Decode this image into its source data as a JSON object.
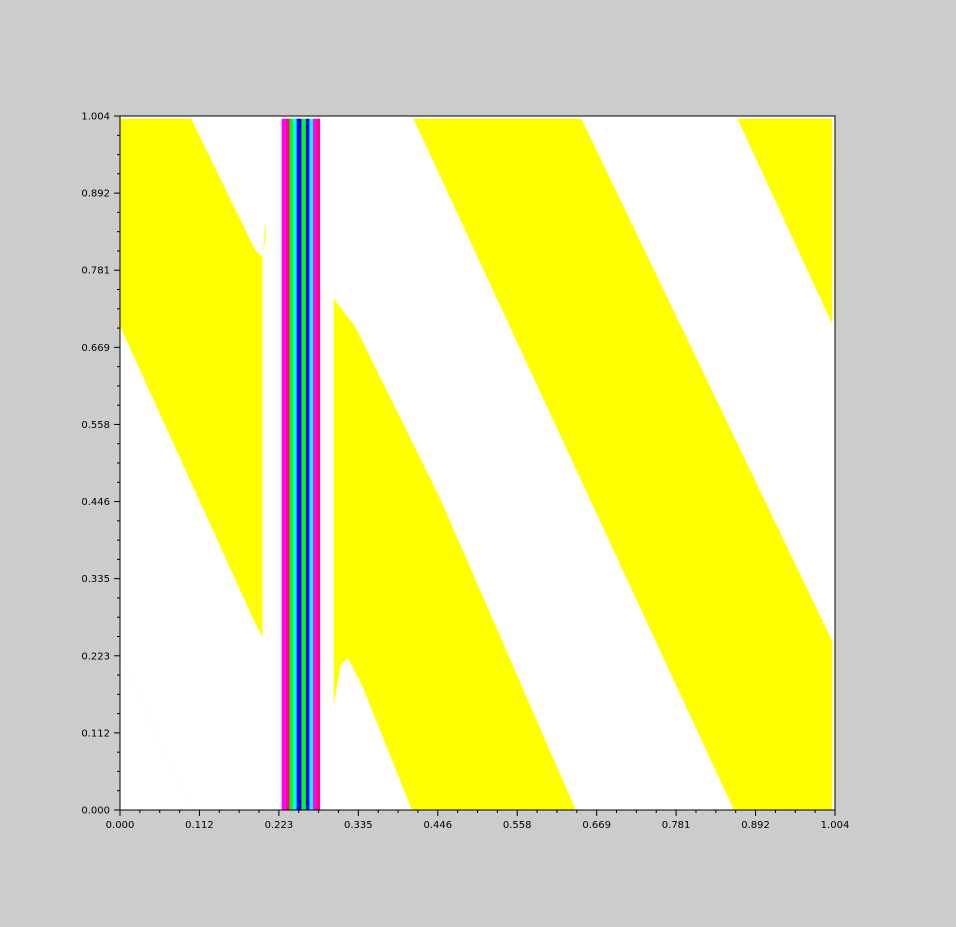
{
  "colors": {
    "figure_background": "#cccccc",
    "plot_background": "#ffffff",
    "axis": "#000000"
  },
  "chart_data": {
    "type": "heatmap",
    "title": "",
    "xlabel": "",
    "ylabel": "",
    "xlim": [
      0.0,
      1.004
    ],
    "ylim": [
      0.0,
      1.004
    ],
    "grid": false,
    "legend": "none",
    "x_ticks": [
      "0.000",
      "0.112",
      "0.223",
      "0.335",
      "0.446",
      "0.558",
      "0.669",
      "0.781",
      "0.892",
      "1.004"
    ],
    "y_ticks": [
      "0.000",
      "0.112",
      "0.223",
      "0.335",
      "0.446",
      "0.558",
      "0.669",
      "0.781",
      "0.892",
      "1.004"
    ],
    "regions": [
      {
        "color": "#ffff00",
        "points": [
          [
            0.0,
            1.0
          ],
          [
            0.1,
            1.0
          ],
          [
            0.196,
            0.797
          ],
          [
            0.2,
            0.81
          ],
          [
            0.2,
            0.0
          ],
          [
            0.1,
            0.0
          ],
          [
            0.0,
            0.22
          ]
        ]
      },
      {
        "color": "#ffff00",
        "points": [
          [
            0.0,
            0.7
          ],
          [
            0.2,
            0.255
          ],
          [
            0.2,
            0.797
          ],
          [
            0.196,
            0.797
          ],
          [
            0.1,
            1.0
          ],
          [
            0.0,
            1.0
          ]
        ]
      },
      {
        "color": "#ffff00",
        "points": [
          [
            0.3,
            1.0
          ],
          [
            0.3,
            0.72
          ],
          [
            0.42,
            0.45
          ],
          [
            0.45,
            0.36
          ],
          [
            0.38,
            0.0
          ],
          [
            0.3,
            0.0
          ]
        ]
      },
      {
        "color": "#ffff00",
        "points": [
          [
            0.3,
            1.0
          ],
          [
            0.411,
            1.0
          ],
          [
            0.64,
            0.0
          ],
          [
            0.41,
            0.0
          ],
          [
            0.3,
            0.2
          ]
        ]
      },
      {
        "color": "#ffff00",
        "points": [
          [
            0.412,
            1.0
          ],
          [
            0.648,
            1.0
          ],
          [
            1.0,
            0.245
          ],
          [
            1.0,
            0.0
          ],
          [
            0.862,
            0.0
          ]
        ]
      },
      {
        "color": "#ffff00",
        "points": [
          [
            0.867,
            1.0
          ],
          [
            1.0,
            1.0
          ],
          [
            1.0,
            0.703
          ]
        ]
      }
    ],
    "white_regions": [
      {
        "color": "#ffffff",
        "points": [
          [
            0.1,
            1.0
          ],
          [
            0.2,
            1.0
          ],
          [
            0.2,
            0.797
          ],
          [
            0.196,
            0.797
          ]
        ]
      },
      {
        "color": "#ffffff",
        "points": [
          [
            0.0,
            0.7
          ],
          [
            0.0,
            0.225
          ],
          [
            0.1,
            0.0
          ],
          [
            0.2,
            0.0
          ],
          [
            0.2,
            0.255
          ]
        ]
      },
      {
        "color": "#ffffff",
        "points": [
          [
            0.3,
            0.0
          ],
          [
            0.41,
            0.0
          ],
          [
            0.313,
            0.213
          ],
          [
            0.3,
            0.16
          ]
        ]
      },
      {
        "color": "#ffffff",
        "points": [
          [
            0.3,
            1.0
          ],
          [
            0.411,
            1.0
          ],
          [
            0.645,
            0.0
          ],
          [
            0.408,
            0.0
          ],
          [
            0.3,
            0.208
          ],
          [
            0.3,
            0.225
          ],
          [
            0.313,
            0.213
          ],
          [
            0.405,
            0.0
          ]
        ]
      },
      {
        "color": "#ffffff",
        "points": [
          [
            0.3,
            1.0
          ],
          [
            0.412,
            1.0
          ],
          [
            0.862,
            0.0
          ],
          [
            0.645,
            0.0
          ],
          [
            0.55,
            0.2
          ]
        ]
      },
      {
        "color": "#ffffff",
        "points": [
          [
            0.648,
            1.0
          ],
          [
            0.867,
            1.0
          ],
          [
            1.0,
            0.703
          ],
          [
            1.0,
            0.245
          ]
        ]
      }
    ],
    "stripes": [
      {
        "x0": 0.227,
        "x1": 0.233,
        "color": "#ff00ff"
      },
      {
        "x0": 0.233,
        "x1": 0.238,
        "color": "#ff0080"
      },
      {
        "x0": 0.238,
        "x1": 0.243,
        "color": "#00ff00"
      },
      {
        "x0": 0.243,
        "x1": 0.248,
        "color": "#00ffff"
      },
      {
        "x0": 0.248,
        "x1": 0.255,
        "color": "#0000ff"
      },
      {
        "x0": 0.255,
        "x1": 0.261,
        "color": "#00ff00"
      },
      {
        "x0": 0.261,
        "x1": 0.266,
        "color": "#0000ff"
      },
      {
        "x0": 0.266,
        "x1": 0.271,
        "color": "#00ffff"
      },
      {
        "x0": 0.271,
        "x1": 0.276,
        "color": "#ff00ff"
      },
      {
        "x0": 0.276,
        "x1": 0.281,
        "color": "#ff0080"
      }
    ]
  }
}
